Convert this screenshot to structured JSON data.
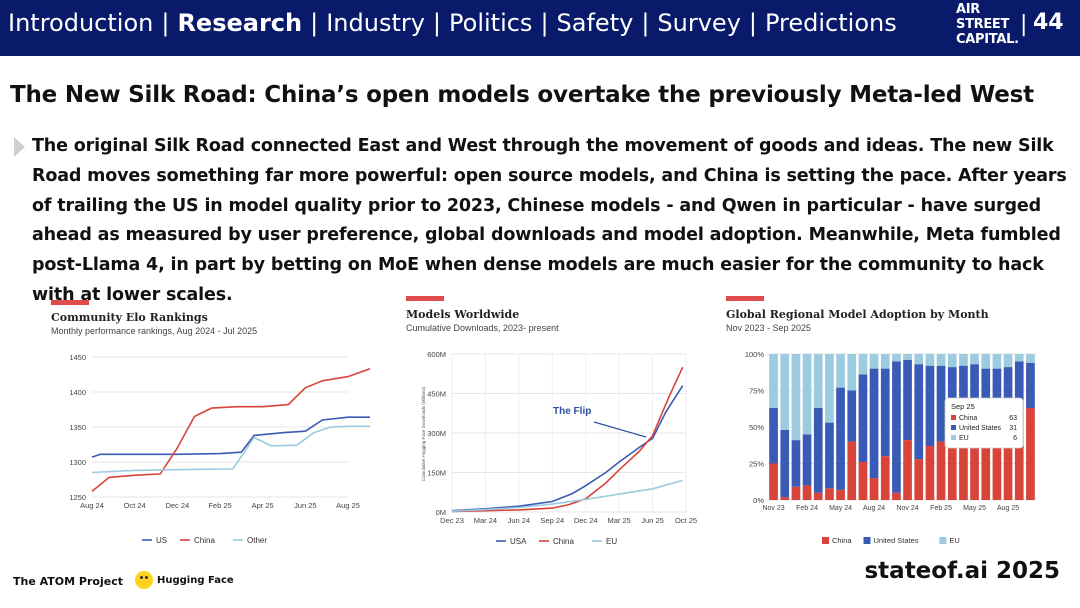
{
  "header": {
    "nav": [
      {
        "label": "Introduction",
        "active": false
      },
      {
        "label": "Research",
        "active": true
      },
      {
        "label": "Industry",
        "active": false
      },
      {
        "label": "Politics",
        "active": false
      },
      {
        "label": "Safety",
        "active": false
      },
      {
        "label": "Survey",
        "active": false
      },
      {
        "label": "Predictions",
        "active": false
      }
    ],
    "separator": "|",
    "logo_lines": [
      "AIR",
      "STREET",
      "CAPITAL."
    ],
    "page_separator": "|",
    "page_number": "44"
  },
  "slide": {
    "title": "The New Silk Road: China’s open models overtake the previously Meta-led West",
    "body": "The original Silk Road connected East and West through the movement of goods and ideas. The new Silk Road moves something far more powerful: open source models, and China is setting the pace. After years of trailing the US in model quality prior to 2023, Chinese models - and Qwen in particular - have surged ahead as measured by user preference, global downloads and model adoption. Meanwhile, Meta fumbled post-Llama 4, in part by betting on MoE when dense models are much easier for the community to hack with at lower scales."
  },
  "colors": {
    "header_bg": "#0a1a6b",
    "accent": "#e04a4a",
    "us": "#3a5bb5",
    "china": "#d9443a",
    "other": "#9ccbe0"
  },
  "chart_data": [
    {
      "type": "line",
      "title": "Community Elo Rankings",
      "subtitle": "Monthly performance rankings, Aug 2024 - Jul 2025",
      "x_ticks": [
        "Aug 24",
        "Oct 24",
        "Dec 24",
        "Feb 25",
        "Apr 25",
        "Jun 25",
        "Aug 25"
      ],
      "y_ticks": [
        "1250",
        "1300",
        "1350",
        "1400",
        "1450"
      ],
      "ylim": [
        1250,
        1450
      ],
      "series": [
        {
          "name": "US",
          "color": "#3a5bb5",
          "points": [
            [
              0,
              1307
            ],
            [
              0.2,
              1311
            ],
            [
              1,
              1311
            ],
            [
              2,
              1311
            ],
            [
              3,
              1312
            ],
            [
              3.5,
              1314
            ],
            [
              3.8,
              1338
            ],
            [
              4.5,
              1342
            ],
            [
              5,
              1344
            ],
            [
              5.4,
              1360
            ],
            [
              6,
              1364
            ],
            [
              6.6,
              1364
            ]
          ]
        },
        {
          "name": "China",
          "color": "#d9443a",
          "points": [
            [
              0,
              1258
            ],
            [
              0.4,
              1278
            ],
            [
              1,
              1281
            ],
            [
              1.6,
              1283
            ],
            [
              2,
              1320
            ],
            [
              2.4,
              1365
            ],
            [
              2.8,
              1377
            ],
            [
              3.4,
              1379
            ],
            [
              4,
              1379
            ],
            [
              4.6,
              1382
            ],
            [
              5,
              1406
            ],
            [
              5.4,
              1416
            ],
            [
              6,
              1422
            ],
            [
              6.6,
              1435
            ]
          ]
        },
        {
          "name": "Other",
          "color": "#9ccbe0",
          "points": [
            [
              0,
              1285
            ],
            [
              1,
              1288
            ],
            [
              2,
              1289
            ],
            [
              3,
              1290
            ],
            [
              3.3,
              1290
            ],
            [
              3.8,
              1335
            ],
            [
              4.2,
              1323
            ],
            [
              4.8,
              1324
            ],
            [
              5.2,
              1342
            ],
            [
              5.6,
              1350
            ],
            [
              6,
              1351
            ],
            [
              6.6,
              1351
            ]
          ]
        }
      ]
    },
    {
      "type": "line",
      "title": "Models Worldwide",
      "subtitle": "Cumulative Downloads, 2023- present",
      "ylabel": "Cumulative Hugging Face Downloads (Millions)",
      "x_ticks": [
        "Dec 23",
        "Mar 24",
        "Jun 24",
        "Sep 24",
        "Dec 24",
        "Mar 25",
        "Jun 25",
        "Oct 25"
      ],
      "y_ticks": [
        "0M",
        "150M",
        "300M",
        "450M",
        "600M"
      ],
      "ylim": [
        0,
        600
      ],
      "annotation": "The Flip",
      "series": [
        {
          "name": "USA",
          "color": "#3a5bb5",
          "points": [
            [
              0,
              5
            ],
            [
              1,
              12
            ],
            [
              2,
              22
            ],
            [
              3,
              40
            ],
            [
              3.6,
              70
            ],
            [
              4,
              100
            ],
            [
              4.6,
              150
            ],
            [
              5,
              190
            ],
            [
              5.6,
              245
            ],
            [
              6,
              280
            ],
            [
              6.4,
              380
            ],
            [
              6.9,
              480
            ]
          ]
        },
        {
          "name": "China",
          "color": "#d9443a",
          "points": [
            [
              0,
              2
            ],
            [
              1,
              5
            ],
            [
              2,
              8
            ],
            [
              3,
              15
            ],
            [
              3.5,
              28
            ],
            [
              4,
              50
            ],
            [
              4.6,
              110
            ],
            [
              5,
              160
            ],
            [
              5.6,
              230
            ],
            [
              6,
              290
            ],
            [
              6.5,
              440
            ],
            [
              6.9,
              550
            ]
          ]
        },
        {
          "name": "EU",
          "color": "#9ccbe0",
          "points": [
            [
              0,
              3
            ],
            [
              1,
              9
            ],
            [
              2,
              17
            ],
            [
              3,
              30
            ],
            [
              4,
              48
            ],
            [
              5,
              68
            ],
            [
              6,
              88
            ],
            [
              6.9,
              120
            ]
          ]
        }
      ]
    },
    {
      "type": "bar",
      "stacked": true,
      "title": "Global Regional Model Adoption by Month",
      "subtitle": "Nov 2023 - Sep 2025",
      "x_ticks": [
        "Nov 23",
        "Feb 24",
        "May 24",
        "Aug 24",
        "Nov 24",
        "Feb 25",
        "May 25",
        "Aug 25"
      ],
      "y_ticks": [
        "0%",
        "25%",
        "50%",
        "75%",
        "100%"
      ],
      "ylim": [
        0,
        100
      ],
      "series": [
        {
          "name": "China",
          "color": "#d9443a",
          "values": [
            25,
            2,
            9,
            10,
            5,
            8,
            7,
            40,
            26,
            15,
            30,
            5,
            41,
            28,
            37,
            40,
            41,
            45,
            48,
            52,
            55,
            58,
            60,
            63
          ]
        },
        {
          "name": "United States",
          "color": "#3a5bb5",
          "values": [
            38,
            46,
            32,
            35,
            58,
            45,
            70,
            35,
            60,
            75,
            60,
            90,
            55,
            65,
            55,
            52,
            50,
            47,
            45,
            38,
            35,
            33,
            35,
            31
          ]
        },
        {
          "name": "EU",
          "color": "#9ccbe0",
          "values": [
            37,
            52,
            59,
            55,
            37,
            47,
            23,
            25,
            14,
            10,
            10,
            5,
            4,
            7,
            8,
            8,
            9,
            8,
            7,
            10,
            10,
            9,
            5,
            6
          ]
        }
      ],
      "tooltip": {
        "title": "Sep 25",
        "rows": [
          [
            "China",
            "63"
          ],
          [
            "United States",
            "31"
          ],
          [
            "EU",
            "6"
          ]
        ]
      }
    }
  ],
  "footer": {
    "brand": "stateof.ai 2025",
    "atom": "The ATOM Project",
    "hugging_face": "Hugging Face"
  }
}
